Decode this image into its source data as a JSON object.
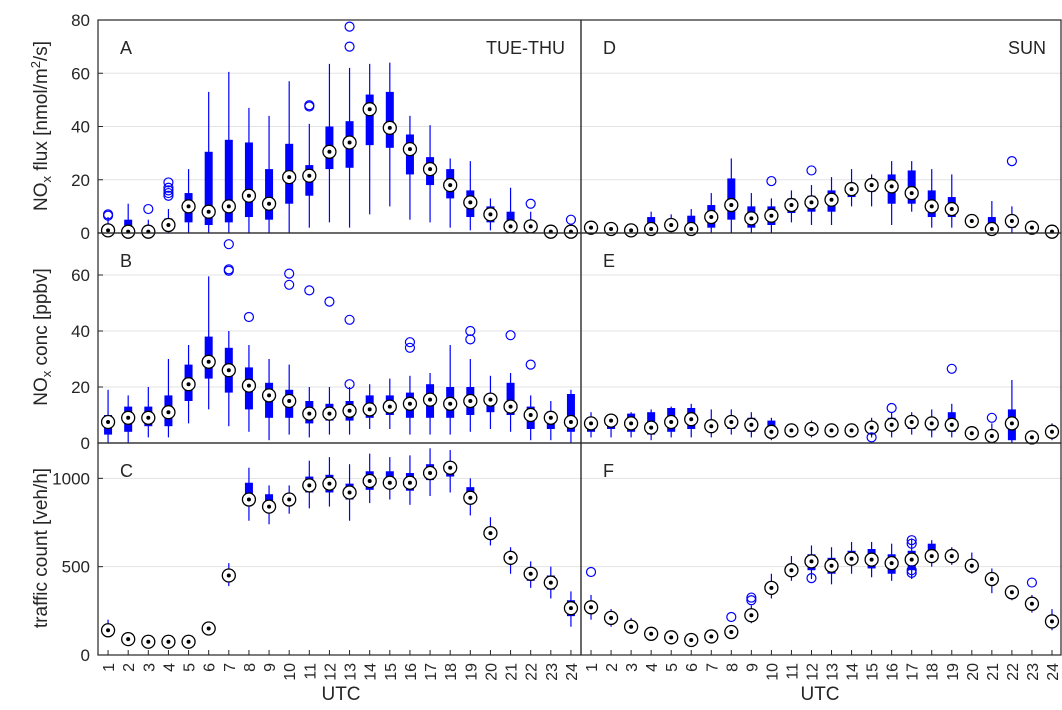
{
  "colors": {
    "box": "#0000ff",
    "frame": "#262626",
    "grid": "#e3e3e3"
  },
  "x_tick_labels": [
    "1",
    "2",
    "3",
    "4",
    "5",
    "6",
    "7",
    "8",
    "9",
    "10",
    "11",
    "12",
    "13",
    "14",
    "15",
    "16",
    "17",
    "18",
    "19",
    "20",
    "21",
    "22",
    "23",
    "24"
  ],
  "x_label_left": "UTC",
  "x_label_right": "UTC",
  "y_labels": {
    "flux": {
      "pre": "NO",
      "sub": "x",
      "mid": " flux [nmol/m",
      "sup": "2",
      "post": "/s]"
    },
    "conc": {
      "pre": "NO",
      "sub": "x",
      "mid": " conc [ppbv]",
      "sup": "",
      "post": ""
    },
    "traffic": {
      "pre": "traffic count [veh/h]",
      "sub": "",
      "mid": "",
      "sup": "",
      "post": ""
    }
  },
  "chart_data": [
    {
      "type": "box",
      "panel": "A",
      "annotation": "TUE-THU",
      "row": "flux",
      "ylim": [
        0,
        80
      ],
      "yticks": [
        0,
        20,
        40,
        60,
        80
      ],
      "median": [
        1,
        0.5,
        0.5,
        3,
        10,
        8,
        10,
        14,
        11,
        21,
        21.5,
        30.5,
        34,
        46.5,
        39.5,
        31.5,
        24,
        18,
        11.5,
        7,
        2.5,
        2.5,
        0.5,
        0.5
      ],
      "q1": [
        0.3,
        0.1,
        0.1,
        1.5,
        4,
        3,
        4,
        6,
        5,
        11,
        14,
        24,
        24.5,
        33,
        32,
        22,
        18,
        13,
        6,
        4,
        0.5,
        0.5,
        0.1,
        0.1
      ],
      "q3": [
        1.5,
        5,
        1.5,
        5.5,
        15,
        30.5,
        35,
        34,
        24,
        33.5,
        25.5,
        40,
        42,
        52,
        53,
        37,
        28.5,
        24,
        16,
        10,
        8,
        4,
        0.5,
        0.8
      ],
      "lo": [
        0,
        0,
        0,
        0,
        0,
        0,
        0,
        0,
        0,
        0,
        2,
        4,
        2,
        7,
        10,
        5,
        4,
        2,
        1,
        1,
        0,
        0,
        0,
        0
      ],
      "hi": [
        6,
        11,
        5,
        9,
        24,
        53,
        60.5,
        47,
        44,
        57,
        41,
        63.5,
        62,
        63.5,
        64,
        44,
        40.5,
        28,
        27,
        13,
        17,
        8,
        3,
        3
      ],
      "outliers": [
        [
          1,
          7
        ],
        [
          1,
          6.5
        ],
        [
          3,
          9
        ],
        [
          4,
          19
        ],
        [
          4,
          17
        ],
        [
          4,
          16
        ],
        [
          4,
          15
        ],
        [
          4,
          14
        ],
        [
          11,
          48
        ],
        [
          11,
          47.5
        ],
        [
          13,
          70
        ],
        [
          13,
          77.5
        ],
        [
          22,
          11
        ],
        [
          24,
          5
        ]
      ]
    },
    {
      "type": "box",
      "panel": "B",
      "annotation": "",
      "row": "conc",
      "ylim": [
        0,
        75
      ],
      "yticks": [
        0,
        20,
        40,
        60
      ],
      "median": [
        7.5,
        9,
        9,
        11,
        21,
        29,
        26,
        20.5,
        17,
        15,
        10.5,
        10.5,
        11.5,
        12,
        13,
        14,
        15.5,
        14,
        15,
        15.5,
        13,
        10,
        9,
        7.5
      ],
      "q1": [
        3,
        4,
        6,
        6,
        15,
        23,
        18,
        12,
        9,
        9,
        7,
        8,
        8,
        9,
        10,
        9,
        9,
        9,
        10,
        11,
        10,
        5,
        5,
        4
      ],
      "q3": [
        10,
        13,
        13,
        17,
        28,
        38,
        34,
        27,
        21.5,
        19,
        15,
        14,
        15,
        17,
        17,
        18,
        21,
        20,
        20,
        17,
        21.5,
        13,
        11,
        17.5
      ],
      "lo": [
        0,
        0,
        2,
        2,
        7,
        12,
        6,
        4,
        1,
        3,
        2,
        3,
        3,
        5,
        5,
        3,
        3,
        3,
        4,
        5,
        4,
        1,
        1,
        0
      ],
      "hi": [
        19,
        17,
        20,
        30,
        35,
        59.5,
        40,
        35,
        30,
        28,
        20,
        20,
        20,
        21,
        23,
        24,
        25,
        35,
        30,
        24,
        25,
        17,
        15,
        19
      ],
      "outliers": [
        [
          7,
          71
        ],
        [
          7,
          62
        ],
        [
          7,
          61.5
        ],
        [
          8,
          45
        ],
        [
          10,
          60.5
        ],
        [
          10,
          56.5
        ],
        [
          11,
          54.5
        ],
        [
          12,
          50.5
        ],
        [
          13,
          44
        ],
        [
          13,
          21
        ],
        [
          16,
          36
        ],
        [
          16,
          34
        ],
        [
          19,
          40
        ],
        [
          19,
          37
        ],
        [
          21,
          38.5
        ],
        [
          22,
          28
        ]
      ]
    },
    {
      "type": "box",
      "panel": "C",
      "annotation": "",
      "row": "traffic",
      "ylim": [
        0,
        1200
      ],
      "yticks": [
        0,
        500,
        1000
      ],
      "median": [
        140,
        90,
        75,
        75,
        75,
        150,
        450,
        880,
        840,
        880,
        960,
        970,
        920,
        985,
        975,
        975,
        1030,
        1060,
        890,
        690,
        550,
        460,
        410,
        265
      ],
      "q1": [
        110,
        70,
        60,
        55,
        60,
        130,
        420,
        850,
        810,
        850,
        920,
        920,
        880,
        935,
        940,
        930,
        990,
        1010,
        860,
        660,
        520,
        420,
        370,
        220
      ],
      "q3": [
        170,
        100,
        90,
        95,
        90,
        170,
        480,
        975,
        910,
        900,
        1010,
        1020,
        970,
        1040,
        1040,
        1030,
        1080,
        1090,
        950,
        720,
        580,
        490,
        450,
        310
      ],
      "lo": [
        100,
        60,
        55,
        40,
        55,
        120,
        390,
        760,
        740,
        800,
        830,
        840,
        760,
        860,
        880,
        850,
        900,
        920,
        790,
        620,
        460,
        380,
        320,
        160
      ],
      "hi": [
        200,
        110,
        100,
        110,
        100,
        180,
        520,
        1060,
        960,
        960,
        1100,
        1120,
        1080,
        1140,
        1120,
        1130,
        1170,
        1160,
        1000,
        780,
        610,
        530,
        500,
        360
      ],
      "outliers": []
    },
    {
      "type": "box",
      "panel": "D",
      "annotation": "SUN",
      "row": "flux",
      "ylim": [
        0,
        80
      ],
      "yticks": [
        0,
        20,
        40,
        60,
        80
      ],
      "median": [
        2,
        1.5,
        1,
        1.5,
        3,
        1.5,
        6,
        10.5,
        5.5,
        6.5,
        10.5,
        11.5,
        12.5,
        16.5,
        18,
        17.5,
        15,
        10,
        9,
        4.5,
        1.5,
        4.5,
        2,
        0.5
      ],
      "q1": [
        1,
        1,
        0.5,
        0.5,
        1.5,
        0.5,
        2,
        5,
        2,
        3,
        7.5,
        8,
        8,
        13.5,
        15.5,
        11,
        11,
        6,
        6,
        3,
        0.5,
        2,
        1,
        0.2
      ],
      "q3": [
        3,
        2.5,
        2,
        6,
        5,
        6.5,
        10.5,
        20.5,
        10,
        10,
        13,
        14,
        16,
        18.5,
        20,
        22,
        23.5,
        16,
        13.5,
        5.5,
        6,
        6,
        3,
        1.5
      ],
      "lo": [
        0,
        0,
        0,
        0,
        0,
        0,
        0,
        0,
        0,
        0,
        4,
        3,
        3,
        10,
        10,
        3,
        8,
        2,
        2,
        2,
        0,
        0,
        0,
        0
      ],
      "hi": [
        4,
        4,
        3,
        8,
        7,
        9,
        15,
        28,
        15,
        13,
        16,
        18,
        21,
        24,
        22,
        27,
        27,
        24,
        22,
        6,
        12,
        10,
        4,
        3
      ],
      "outliers": [
        [
          10,
          19.5
        ],
        [
          12,
          23.5
        ],
        [
          22,
          27
        ]
      ]
    },
    {
      "type": "box",
      "panel": "E",
      "annotation": "",
      "row": "conc",
      "ylim": [
        0,
        75
      ],
      "yticks": [
        0,
        20,
        40,
        60
      ],
      "median": [
        7,
        8,
        7,
        5.5,
        7.5,
        8.5,
        6,
        7.5,
        6.5,
        4,
        4.5,
        5,
        4.5,
        4.5,
        5.5,
        6.5,
        7.5,
        7,
        6.5,
        3.5,
        2.5,
        7,
        2,
        4
      ],
      "q1": [
        4,
        5,
        4,
        3,
        4,
        5,
        4,
        5,
        4,
        2.5,
        3,
        3.5,
        3,
        3,
        4,
        4.5,
        5,
        4.5,
        4,
        2,
        1.5,
        1,
        1,
        2
      ],
      "q3": [
        9,
        9,
        10.5,
        11,
        12.5,
        12.5,
        8,
        9,
        9,
        8,
        5.5,
        6.5,
        5.5,
        6,
        7.5,
        9,
        9,
        9,
        11,
        5,
        4,
        12,
        3,
        5
      ],
      "lo": [
        2,
        2,
        2,
        1,
        2,
        2,
        2,
        3,
        2,
        1,
        2,
        2,
        2,
        2,
        2,
        2,
        3,
        2,
        2,
        1,
        0.5,
        0,
        0,
        1
      ],
      "hi": [
        11,
        10,
        11,
        12,
        13,
        14,
        12,
        12,
        11,
        9,
        7,
        8,
        7,
        7,
        9,
        11,
        11,
        12,
        14,
        6,
        7,
        22.5,
        4,
        7
      ],
      "outliers": [
        [
          15,
          2
        ],
        [
          16,
          12.5
        ],
        [
          19,
          26.5
        ],
        [
          21,
          9
        ]
      ]
    },
    {
      "type": "box",
      "panel": "F",
      "annotation": "",
      "row": "traffic",
      "ylim": [
        0,
        1200
      ],
      "yticks": [
        0,
        500,
        1000
      ],
      "median": [
        270,
        210,
        160,
        120,
        100,
        85,
        105,
        130,
        225,
        380,
        480,
        530,
        505,
        545,
        540,
        520,
        540,
        560,
        560,
        505,
        430,
        355,
        290,
        190
      ],
      "q1": [
        240,
        190,
        140,
        105,
        90,
        75,
        95,
        115,
        200,
        350,
        450,
        480,
        460,
        510,
        490,
        460,
        480,
        530,
        530,
        480,
        400,
        335,
        270,
        170
      ],
      "q3": [
        300,
        230,
        180,
        135,
        110,
        95,
        120,
        145,
        250,
        410,
        510,
        570,
        550,
        590,
        600,
        570,
        590,
        630,
        590,
        530,
        460,
        375,
        310,
        215
      ],
      "lo": [
        200,
        160,
        120,
        90,
        80,
        65,
        85,
        100,
        180,
        320,
        420,
        430,
        400,
        460,
        440,
        420,
        430,
        500,
        510,
        460,
        350,
        310,
        240,
        140
      ],
      "hi": [
        340,
        260,
        210,
        150,
        125,
        105,
        135,
        165,
        280,
        460,
        560,
        620,
        610,
        640,
        640,
        630,
        660,
        650,
        610,
        580,
        490,
        390,
        340,
        260
      ],
      "outliers": [
        [
          1,
          470
        ],
        [
          8,
          215
        ],
        [
          9,
          310
        ],
        [
          9,
          325
        ],
        [
          12,
          435
        ],
        [
          17,
          650
        ],
        [
          17,
          630
        ],
        [
          17,
          480
        ],
        [
          17,
          465
        ],
        [
          23,
          410
        ]
      ]
    }
  ]
}
